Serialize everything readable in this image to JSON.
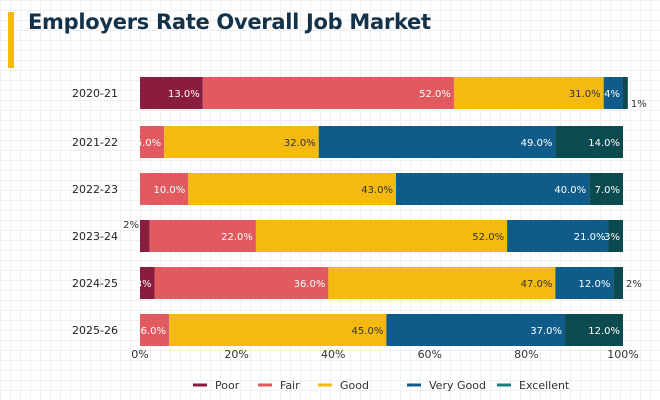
{
  "chart_data": {
    "type": "bar",
    "orientation": "horizontal",
    "stacked": true,
    "title": "Employers Rate Overall Job Market",
    "categories": [
      "2020-21",
      "2021-22",
      "2022-23",
      "2023-24",
      "2024-25",
      "2025-26"
    ],
    "xlim": [
      0,
      100
    ],
    "xticks": [
      "0%",
      "20%",
      "40%",
      "60%",
      "80%",
      "100%"
    ],
    "legend_position": "bottom",
    "series": [
      {
        "name": "Poor",
        "color": "#8A1C3E",
        "values": [
          13,
          0,
          0,
          2,
          3,
          0
        ],
        "labels": [
          "13.0%",
          "",
          "",
          "2%",
          "3%",
          ""
        ]
      },
      {
        "name": "Fair",
        "color": "#E05A5F",
        "values": [
          52,
          5,
          10,
          22,
          36,
          6
        ],
        "labels": [
          "52.0%",
          "5.0%",
          "10.0%",
          "22.0%",
          "36.0%",
          "6.0%"
        ]
      },
      {
        "name": "Good",
        "color": "#F5BA0F",
        "values": [
          31,
          32,
          43,
          52,
          47,
          45
        ],
        "labels": [
          "31.0%",
          "32.0%",
          "43.0%",
          "52.0%",
          "47.0%",
          "45.0%"
        ]
      },
      {
        "name": "Very Good",
        "color": "#0F5C8A",
        "values": [
          4,
          49,
          40,
          21,
          12,
          37
        ],
        "labels": [
          "4%",
          "49.0%",
          "40.0%",
          "21.0%",
          "12.0%",
          "37.0%"
        ]
      },
      {
        "name": "Excellent",
        "color": "#0B4A4E",
        "legend_color": "#1A8079",
        "values": [
          1,
          14,
          7,
          3,
          2,
          12
        ],
        "labels": [
          "1%",
          "14.0%",
          "7.0%",
          "3%",
          "2%",
          "12.0%"
        ]
      }
    ]
  }
}
